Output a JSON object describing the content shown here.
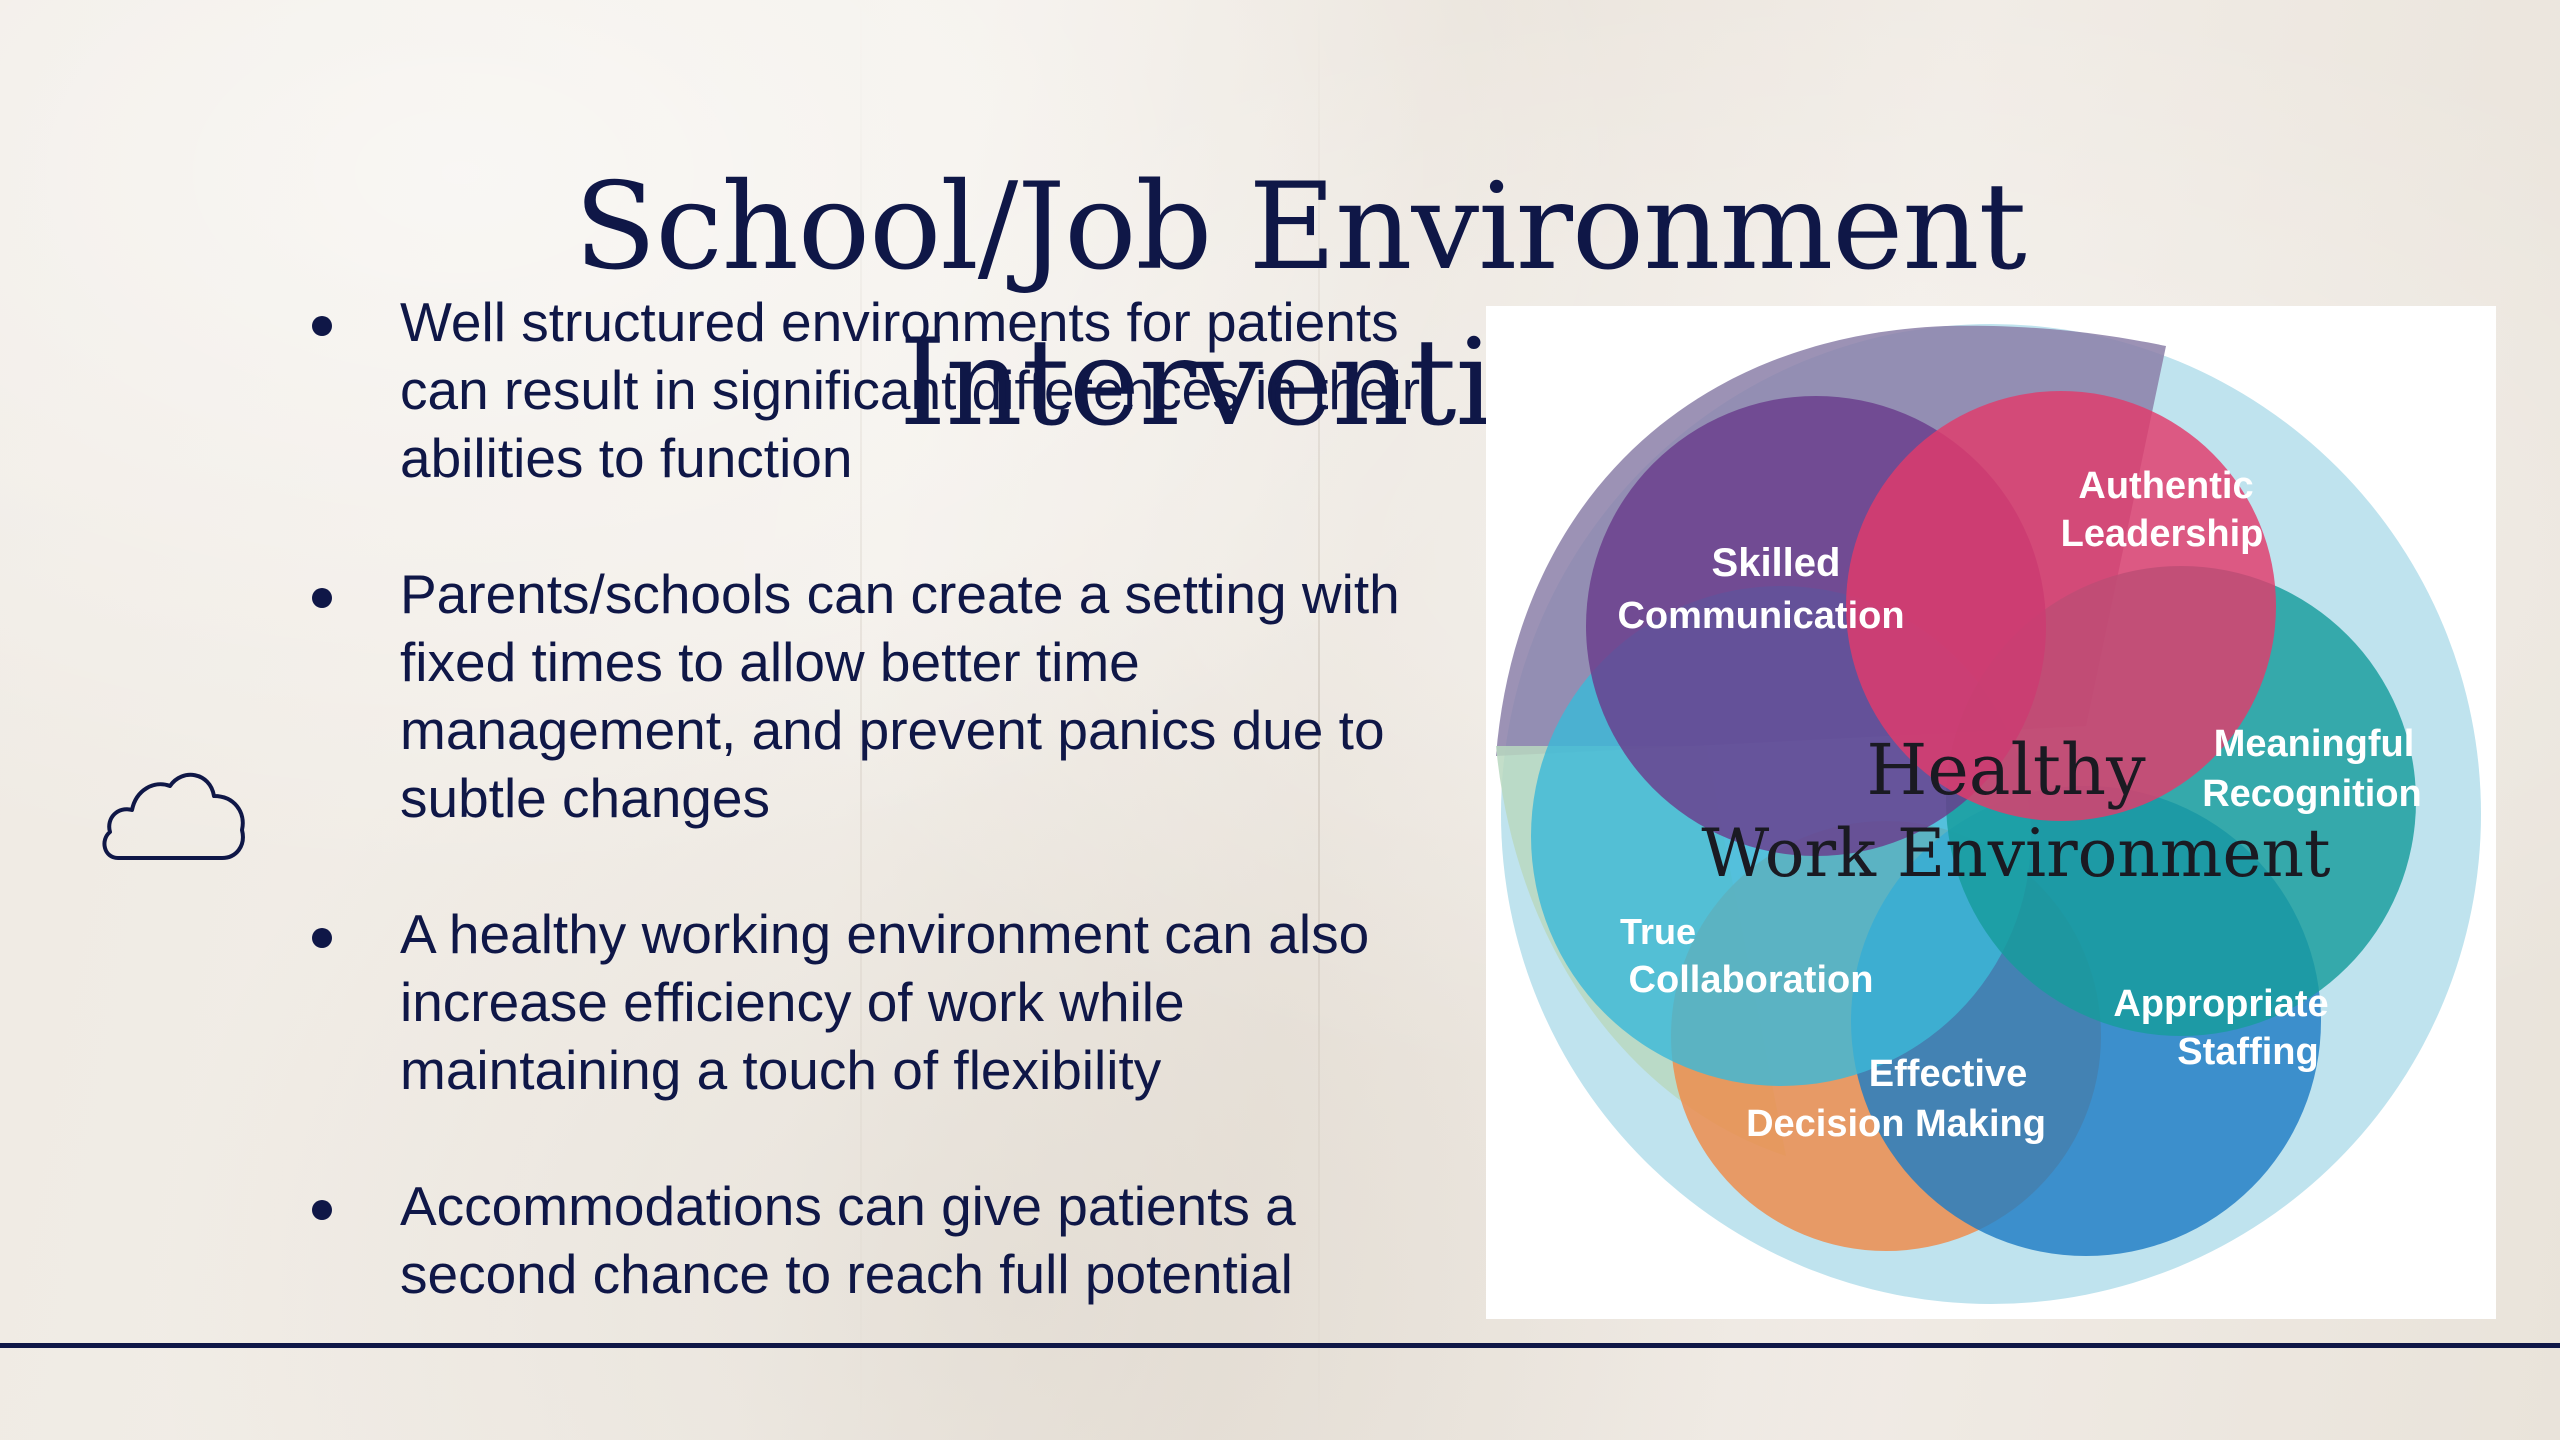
{
  "slide": {
    "title": "School/Job Environment Interventions",
    "bullets": [
      "Well structured environments for patients can result in significant differences in their abilities to function",
      "Parents/schools can create a setting with fixed times to allow better time management, and prevent panics due to subtle changes",
      "A healthy working environment can also increase efficiency of work while maintaining a touch of flexibility",
      "Accommodations can give patients a second chance to reach full potential"
    ],
    "decor_icon": "cloud-outline-icon",
    "colors": {
      "text": "#0f1747",
      "background": "#ede8e1",
      "rule": "#0f1747"
    }
  },
  "diagram": {
    "center_line1": "Healthy",
    "center_line2": "Work Environment",
    "labels": {
      "skilled_1": "Skilled",
      "skilled_2": "Communication",
      "authentic_1": "Authentic",
      "authentic_2": "Leadership",
      "meaningful_1": "Meaningful",
      "meaningful_2": "Recognition",
      "staffing_1": "Appropriate",
      "staffing_2": "Staffing",
      "decision_1": "Effective",
      "decision_2": "Decision Making",
      "collab_1": "True",
      "collab_2": "Collaboration"
    },
    "colors": {
      "outer": "#bfe3ee",
      "purple": "#6a3c8c",
      "magenta": "#e23b6b",
      "teal": "#169c9c",
      "blue": "#1f7cc4",
      "orange": "#ef8a48",
      "cyan": "#3cb8d8",
      "mauve": "#8b7fa8",
      "sage": "#b8d8c0"
    }
  }
}
